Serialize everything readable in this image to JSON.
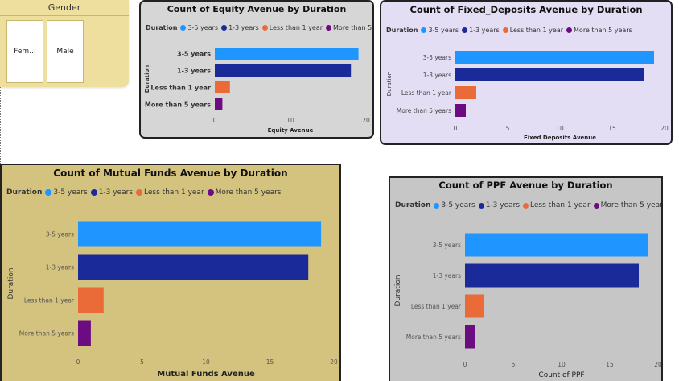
{
  "colors": {
    "series": [
      "#1f96ff",
      "#1a2b99",
      "#ea6b38",
      "#6b0c80"
    ],
    "card_equity_bg": "#d6d6d6",
    "card_fd_bg": "#e4def5",
    "card_mf_bg": "#d3c37e",
    "card_ppf_bg": "#c6c6c6",
    "slicer_bg": "#efdf9e"
  },
  "slicer": {
    "title": "Gender",
    "options": [
      "Fem...",
      "Male"
    ]
  },
  "charts": {
    "equity": {
      "title": "Count of Equity Avenue by Duration",
      "legend_title": "Duration"
    },
    "fd": {
      "title": "Count of Fixed_Deposits Avenue by Duration",
      "legend_title": "Duration"
    },
    "mf": {
      "title": "Count of Mutual Funds Avenue by Duration",
      "legend_title": "Duration"
    },
    "ppf": {
      "title": "Count of PPF Avenue by Duration",
      "legend_title": "Duration"
    }
  },
  "chart_data": [
    {
      "id": "equity",
      "type": "bar",
      "orientation": "horizontal",
      "title": "Count of Equity Avenue by Duration",
      "xlabel": "Equity Avenue",
      "ylabel": "Duration",
      "legend_title": "Duration",
      "legend_position": "top-left",
      "categories": [
        "3-5 years",
        "1-3 years",
        "Less than 1 year",
        "More than 5 years"
      ],
      "values": [
        19,
        18,
        2,
        1
      ],
      "xlim": [
        0,
        20
      ],
      "xticks": [
        0,
        10,
        20
      ]
    },
    {
      "id": "fd",
      "type": "bar",
      "orientation": "horizontal",
      "title": "Count of Fixed_Deposits Avenue by Duration",
      "xlabel": "Fixed Deposits Avenue",
      "ylabel": "Duration",
      "legend_title": "Duration",
      "legend_position": "top-left",
      "categories": [
        "3-5 years",
        "1-3 years",
        "Less than 1 year",
        "More than 5 years"
      ],
      "values": [
        19,
        18,
        2,
        1
      ],
      "xlim": [
        0,
        20
      ],
      "xticks": [
        0,
        5,
        10,
        15,
        20
      ]
    },
    {
      "id": "mf",
      "type": "bar",
      "orientation": "horizontal",
      "title": "Count of Mutual Funds Avenue by Duration",
      "xlabel": "Mutual Funds Avenue",
      "ylabel": "Duration",
      "legend_title": "Duration",
      "legend_position": "top-left",
      "categories": [
        "3-5 years",
        "1-3 years",
        "Less than 1 year",
        "More than 5 years"
      ],
      "values": [
        19,
        18,
        2,
        1
      ],
      "xlim": [
        0,
        20
      ],
      "xticks": [
        0,
        5,
        10,
        15,
        20
      ]
    },
    {
      "id": "ppf",
      "type": "bar",
      "orientation": "horizontal",
      "title": "Count of PPF Avenue by Duration",
      "xlabel": "Count of PPF",
      "ylabel": "Duration",
      "legend_title": "Duration",
      "legend_position": "top-left",
      "categories": [
        "3-5 years",
        "1-3 years",
        "Less than 1 year",
        "More than 5 years"
      ],
      "values": [
        19,
        18,
        2,
        1
      ],
      "xlim": [
        0,
        20
      ],
      "xticks": [
        0,
        5,
        10,
        15,
        20
      ]
    }
  ]
}
